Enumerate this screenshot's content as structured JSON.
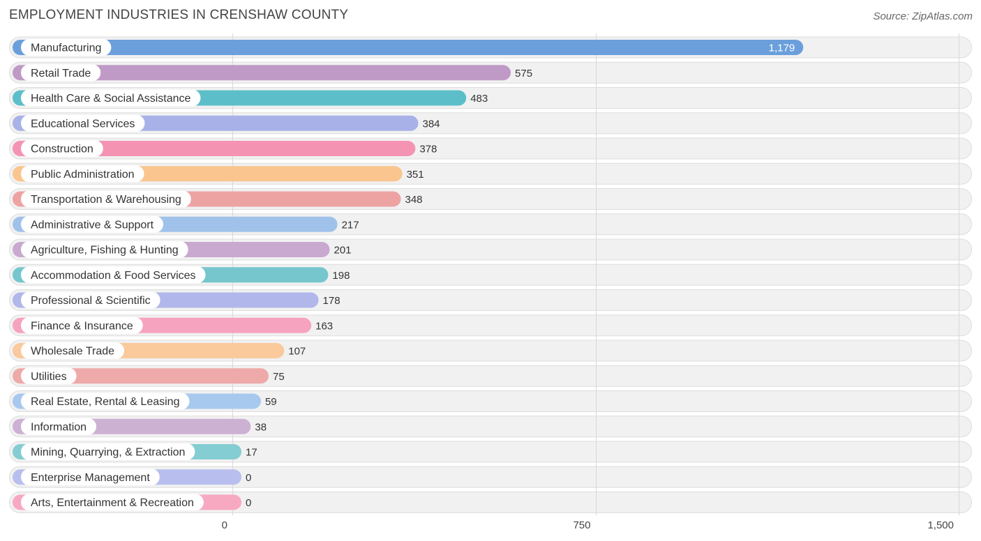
{
  "header": {
    "title": "EMPLOYMENT INDUSTRIES IN CRENSHAW COUNTY",
    "source": "Source: ZipAtlas.com"
  },
  "chart_data": {
    "type": "bar",
    "orientation": "horizontal",
    "title": "EMPLOYMENT INDUSTRIES IN CRENSHAW COUNTY",
    "xlabel": "",
    "ylabel": "",
    "xlim": [
      0,
      1500
    ],
    "ticks": [
      0,
      750,
      1500
    ],
    "tick_labels": [
      "0",
      "750",
      "1,500"
    ],
    "grid": true,
    "categories": [
      "Manufacturing",
      "Retail Trade",
      "Health Care & Social Assistance",
      "Educational Services",
      "Construction",
      "Public Administration",
      "Transportation & Warehousing",
      "Administrative & Support",
      "Agriculture, Fishing & Hunting",
      "Accommodation & Food Services",
      "Professional & Scientific",
      "Finance & Insurance",
      "Wholesale Trade",
      "Utilities",
      "Real Estate, Rental & Leasing",
      "Information",
      "Mining, Quarrying, & Extraction",
      "Enterprise Management",
      "Arts, Entertainment & Recreation"
    ],
    "values": [
      1179,
      575,
      483,
      384,
      378,
      351,
      348,
      217,
      201,
      198,
      178,
      163,
      107,
      75,
      59,
      38,
      17,
      0,
      0
    ],
    "value_labels": [
      "1,179",
      "575",
      "483",
      "384",
      "378",
      "351",
      "348",
      "217",
      "201",
      "198",
      "178",
      "163",
      "107",
      "75",
      "59",
      "38",
      "17",
      "0",
      "0"
    ],
    "colors": [
      "#6a9fdc",
      "#c09ac6",
      "#5cbec8",
      "#a8b2e8",
      "#f493b2",
      "#fac58e",
      "#eda3a2",
      "#a0c2ea",
      "#c9a9cf",
      "#76c6cd",
      "#b1b7ea",
      "#f6a3bf",
      "#fac99c",
      "#eeaaa8",
      "#a8c9ee",
      "#cdb1d3",
      "#84cdd2",
      "#b8bfee",
      "#f7a9c2"
    ]
  }
}
